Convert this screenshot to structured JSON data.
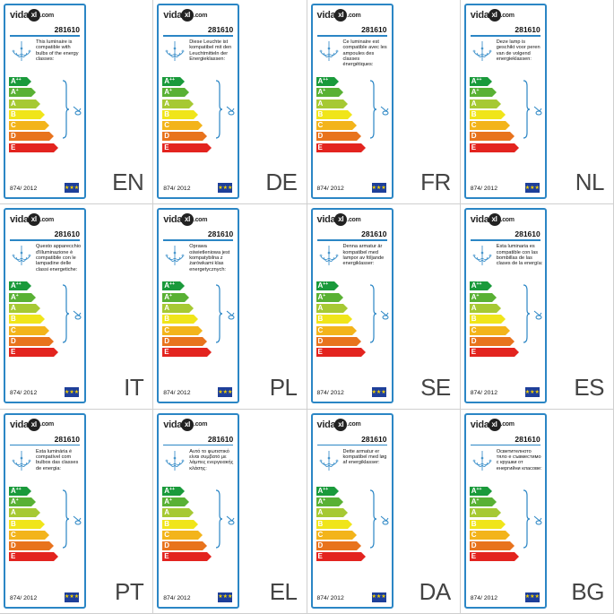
{
  "brand": {
    "name_pre": "vida",
    "name_mark": "xl",
    "name_post": ".com"
  },
  "model": "281610",
  "regulation": "874/ 2012",
  "flag_symbol": "★★★",
  "classes": [
    {
      "letter": "A",
      "sup": "++",
      "color": "#1a9a3b"
    },
    {
      "letter": "A",
      "sup": "+",
      "color": "#59b134"
    },
    {
      "letter": "A",
      "sup": "",
      "color": "#a6c933"
    },
    {
      "letter": "B",
      "sup": "",
      "color": "#f0e51a"
    },
    {
      "letter": "C",
      "sup": "",
      "color": "#f3b41b"
    },
    {
      "letter": "D",
      "sup": "",
      "color": "#e8731d"
    },
    {
      "letter": "E",
      "sup": "",
      "color": "#e3241f"
    }
  ],
  "panels": [
    {
      "code": "EN",
      "text": "This luminaire is compatible with bulbs of the energy classes:"
    },
    {
      "code": "DE",
      "text": "Diese Leuchte ist kompatibel mit den Leuchtmitteln der Energieklassen:"
    },
    {
      "code": "FR",
      "text": "Ce luminaire est compatible avec les ampoules des classes énergétiques:"
    },
    {
      "code": "NL",
      "text": "Deze lamp is geschikt voor peren van de volgend energieklassen:"
    },
    {
      "code": "IT",
      "text": "Questo apparecchio d'illuminazione è compatibile con le lampadine delle classi energetiche:"
    },
    {
      "code": "PL",
      "text": "Oprawa oświetleniowa jest kompatybilna z żarówkami klas energetycznych:"
    },
    {
      "code": "SE",
      "text": "Denna armatur är kompatibel med lampor av följande energiklasser:"
    },
    {
      "code": "ES",
      "text": "Esta luminaria es compatible con las bombillas de las clases de la energía:"
    },
    {
      "code": "PT",
      "text": "Esta luminária é compatível com bulbos das classes de energia:"
    },
    {
      "code": "EL",
      "text": "Αυτό το φωτιστικό είναι συμβατό με λάμπες ενεργειακής κλάσης:"
    },
    {
      "code": "DA",
      "text": "Dette armatur er kompatibel med løg af energiklasser:"
    },
    {
      "code": "BG",
      "text": "Осветителното тяло е съвместимо с крушки от енергийни класове:"
    }
  ]
}
